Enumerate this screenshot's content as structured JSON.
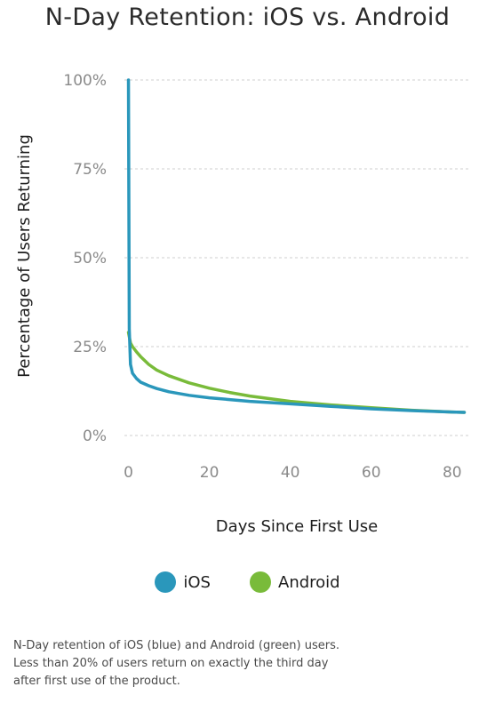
{
  "chart_data": {
    "type": "line",
    "title": "N-Day Retention: iOS vs. Android",
    "xlabel": "Days Since First Use",
    "ylabel": "Percentage of Users Returning",
    "xlim": [
      -1,
      84
    ],
    "ylim": [
      0,
      100
    ],
    "x_ticks": [
      0,
      20,
      40,
      60,
      80
    ],
    "y_ticks": [
      0,
      25,
      50,
      75,
      100
    ],
    "y_tick_labels": [
      "0%",
      "25%",
      "50%",
      "75%",
      "100%"
    ],
    "grid": "horizontal dashed",
    "legend_position": "bottom",
    "series": [
      {
        "name": "iOS",
        "color": "#2a97bb",
        "x": [
          0,
          0.2,
          0.5,
          1,
          2,
          3,
          5,
          7,
          10,
          15,
          20,
          25,
          30,
          40,
          50,
          60,
          70,
          80,
          83
        ],
        "y": [
          100,
          30,
          20,
          17.5,
          16,
          15,
          14,
          13.2,
          12.3,
          11.3,
          10.6,
          10.1,
          9.6,
          8.9,
          8.2,
          7.5,
          7,
          6.6,
          6.5
        ]
      },
      {
        "name": "Android",
        "color": "#79bb3a",
        "x": [
          0,
          0.5,
          1,
          2,
          3,
          5,
          7,
          10,
          15,
          20,
          25,
          30,
          40,
          50,
          60,
          70,
          80,
          83
        ],
        "y": [
          29,
          26,
          25,
          23.5,
          22.2,
          20,
          18.4,
          16.8,
          14.8,
          13.3,
          12.1,
          11.1,
          9.6,
          8.6,
          7.8,
          7.1,
          6.6,
          6.5
        ]
      }
    ]
  },
  "caption": {
    "line1": "N-Day retention of iOS (blue) and Android (green) users.",
    "line2": "Less than 20% of users return on exactly the third day",
    "line3": "after  first use of the product."
  }
}
